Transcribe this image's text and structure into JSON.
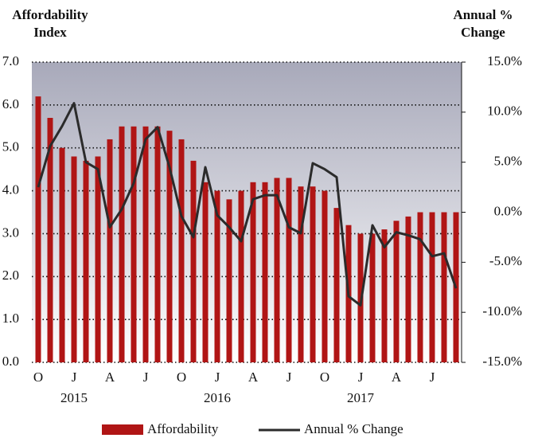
{
  "chart_data": {
    "type": "combo",
    "y_label": "Affordability Index",
    "y2_label": "Annual % Change",
    "categories": [
      "O",
      null,
      null,
      "J",
      null,
      null,
      "A",
      null,
      null,
      "J",
      null,
      null,
      "O",
      null,
      null,
      "J",
      null,
      null,
      "A",
      null,
      null,
      "J",
      null,
      null,
      "O",
      null,
      null,
      "J",
      null,
      null,
      "A",
      null,
      null,
      "J",
      null,
      null
    ],
    "categories2": [
      null,
      null,
      null,
      "2015",
      null,
      null,
      null,
      null,
      null,
      null,
      null,
      null,
      null,
      null,
      null,
      "2016",
      null,
      null,
      null,
      null,
      null,
      null,
      null,
      null,
      null,
      null,
      null,
      "2017",
      null,
      null,
      null,
      null,
      null,
      null,
      null,
      null
    ],
    "series": [
      {
        "name": "Affordability",
        "type": "bar",
        "color": "#b01515",
        "values": [
          6.2,
          5.7,
          5.0,
          4.8,
          4.7,
          4.8,
          5.2,
          5.5,
          5.5,
          5.5,
          5.5,
          5.4,
          5.2,
          4.7,
          4.2,
          4.0,
          3.8,
          4.0,
          4.2,
          4.2,
          4.3,
          4.3,
          4.1,
          4.1,
          4.0,
          3.6,
          3.2,
          3.0,
          3.0,
          3.1,
          3.3,
          3.4,
          3.5,
          3.5,
          3.5,
          3.5
        ]
      },
      {
        "name": "Annual % Change",
        "type": "line",
        "axis": "y2",
        "color": "#2b2b2b",
        "values": [
          2.5,
          6.6,
          8.6,
          10.9,
          5.0,
          4.3,
          -1.5,
          0.3,
          2.9,
          7.3,
          8.5,
          4.5,
          -0.4,
          -2.5,
          4.5,
          -0.3,
          -1.5,
          -2.9,
          1.3,
          1.7,
          1.7,
          -1.5,
          -2.1,
          4.9,
          4.3,
          3.5,
          -8.4,
          -9.3,
          -1.3,
          -3.5,
          -2.0,
          -2.3,
          -2.7,
          -4.4,
          -4.1,
          -7.6
        ]
      }
    ],
    "ylim": [
      0,
      7
    ],
    "yticks": [
      {
        "value": 0,
        "label": "0.0"
      },
      {
        "value": 1,
        "label": "1.0"
      },
      {
        "value": 2,
        "label": "2.0"
      },
      {
        "value": 3,
        "label": "3.0"
      },
      {
        "value": 4,
        "label": "4.0"
      },
      {
        "value": 5,
        "label": "5.0"
      },
      {
        "value": 6,
        "label": "6.0"
      },
      {
        "value": 7,
        "label": "7.0"
      }
    ],
    "y2lim": [
      -15,
      15
    ],
    "y2ticks": [
      {
        "value": -15,
        "label": "-15.0%"
      },
      {
        "value": -10,
        "label": "-10.0%"
      },
      {
        "value": -5,
        "label": "-5.0%"
      },
      {
        "value": 0,
        "label": "0.0%"
      },
      {
        "value": 5,
        "label": "5.0%"
      },
      {
        "value": 10,
        "label": "10.0%"
      },
      {
        "value": 15,
        "label": "15.0%"
      }
    ],
    "grid": true
  }
}
